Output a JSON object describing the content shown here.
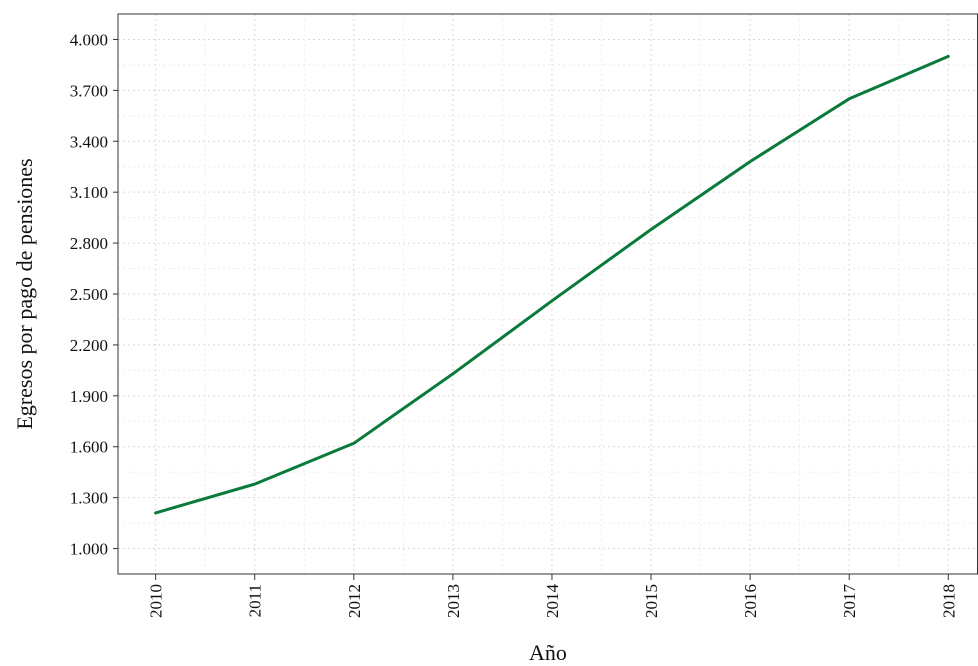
{
  "chart_data": {
    "type": "line",
    "title": "",
    "xlabel": "Año",
    "ylabel": "Egresos por pago de pensiones",
    "x": [
      2010,
      2011,
      2012,
      2013,
      2014,
      2015,
      2016,
      2017,
      2018
    ],
    "x_tick_labels": [
      "2010",
      "2011",
      "2012",
      "2013",
      "2014",
      "2015",
      "2016",
      "2017",
      "2018"
    ],
    "y_ticks": [
      1000,
      1300,
      1600,
      1900,
      2200,
      2500,
      2800,
      3100,
      3400,
      3700,
      4000
    ],
    "y_tick_labels": [
      "1.000",
      "1.300",
      "1.600",
      "1.900",
      "2.200",
      "2.500",
      "2.800",
      "3.100",
      "3.400",
      "3.700",
      "4.000"
    ],
    "xlim": [
      2009.62,
      2018.3
    ],
    "ylim": [
      850,
      4150
    ],
    "grid": true,
    "series": [
      {
        "values": [
          1210,
          1380,
          1620,
          2030,
          2460,
          2880,
          3280,
          3650,
          3900
        ],
        "color": "#0a7a3a"
      }
    ]
  }
}
